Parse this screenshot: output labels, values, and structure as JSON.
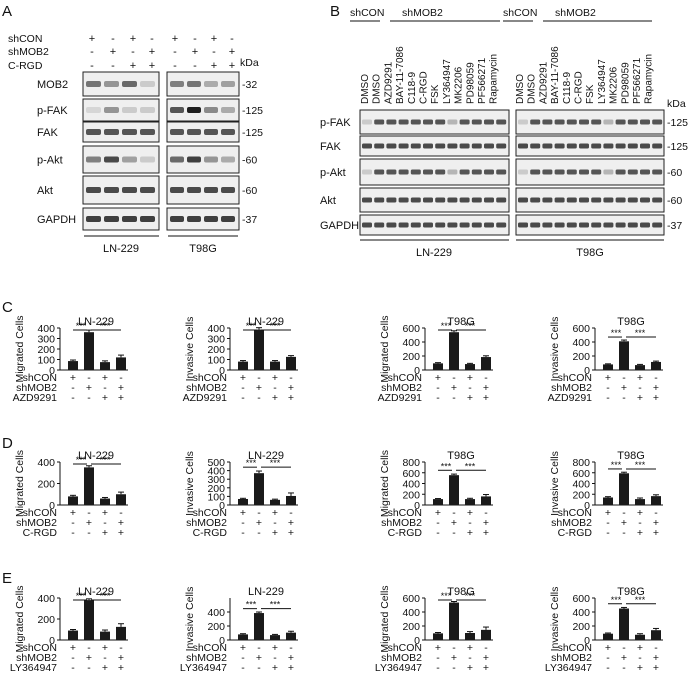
{
  "panel_letters": [
    "A",
    "B",
    "C",
    "D",
    "E"
  ],
  "panelA": {
    "row_labels": [
      "shCON",
      "shMOB2",
      "C-RGD"
    ],
    "signs": [
      [
        "+",
        "-",
        "+",
        "-",
        "+",
        "-",
        "+",
        "-"
      ],
      [
        "-",
        "+",
        "-",
        "+",
        "-",
        "+",
        "-",
        "+"
      ],
      [
        "-",
        "-",
        "+",
        "+",
        "-",
        "-",
        "+",
        "+"
      ]
    ],
    "kda_label": "kDa",
    "blots": [
      {
        "label": "MOB2",
        "kda": "-32",
        "intensity_ln": [
          0.55,
          0.4,
          0.6,
          0.15
        ],
        "intensity_t98": [
          0.5,
          0.55,
          0.3,
          0.35
        ]
      },
      {
        "label": "p-FAK",
        "kda": "-125",
        "intensity_ln": [
          0.1,
          0.4,
          0.15,
          0.15
        ],
        "intensity_t98": [
          0.7,
          0.95,
          0.45,
          0.3
        ]
      },
      {
        "label": "FAK",
        "kda": "-125",
        "intensity_ln": [
          0.7,
          0.7,
          0.7,
          0.7
        ],
        "intensity_t98": [
          0.7,
          0.7,
          0.7,
          0.7
        ]
      },
      {
        "label": "p-Akt",
        "kda": "-60",
        "intensity_ln": [
          0.5,
          0.75,
          0.35,
          0.15
        ],
        "intensity_t98": [
          0.6,
          0.8,
          0.4,
          0.3
        ]
      },
      {
        "label": "Akt",
        "kda": "-60",
        "intensity_ln": [
          0.75,
          0.75,
          0.75,
          0.75
        ],
        "intensity_t98": [
          0.75,
          0.75,
          0.75,
          0.75
        ]
      },
      {
        "label": "GAPDH",
        "kda": "-37",
        "intensity_ln": [
          0.8,
          0.8,
          0.8,
          0.8
        ],
        "intensity_t98": [
          0.8,
          0.8,
          0.8,
          0.8
        ]
      }
    ],
    "cell_lines": [
      "LN-229",
      "T98G"
    ]
  },
  "panelB": {
    "group_headers": [
      "shCON",
      "shMOB2",
      "shCON",
      "shMOB2"
    ],
    "treatments": [
      "DMSO",
      "DMSO",
      "AZD9291",
      "BAY-11-7086",
      "C118-9",
      "C-RGD",
      "FSK",
      "LY364947",
      "MK2206",
      "PD98059",
      "PF566271",
      "Rapamycin"
    ],
    "kda_label": "kDa",
    "blots": [
      {
        "label": "p-FAK",
        "kda": "-125"
      },
      {
        "label": "FAK",
        "kda": "-125"
      },
      {
        "label": "p-Akt",
        "kda": "-60"
      },
      {
        "label": "Akt",
        "kda": "-60"
      },
      {
        "label": "GAPDH",
        "kda": "-37"
      }
    ],
    "cell_lines": [
      "LN-229",
      "T98G"
    ]
  },
  "chart_data": [
    {
      "type": "bar",
      "row": "C",
      "title": "LN-229",
      "ylabel": "Migrated Cells",
      "ylim": [
        0,
        400
      ],
      "yticks": [
        0,
        100,
        200,
        300,
        400
      ],
      "values": [
        85,
        360,
        75,
        120
      ],
      "errors": [
        10,
        20,
        12,
        22
      ],
      "sig": [
        "***",
        "***"
      ],
      "treat_label": "AZD9291"
    },
    {
      "type": "bar",
      "row": "C",
      "title": "LN-229",
      "ylabel": "Invasive Cells",
      "ylim": [
        0,
        400
      ],
      "yticks": [
        0,
        100,
        200,
        300,
        400
      ],
      "values": [
        80,
        385,
        80,
        125
      ],
      "errors": [
        10,
        18,
        10,
        12
      ],
      "sig": [
        "***",
        "***"
      ],
      "treat_label": "AZD9291"
    },
    {
      "type": "bar",
      "row": "C",
      "title": "T98G",
      "ylabel": "Migrated Cells",
      "ylim": [
        0,
        600
      ],
      "yticks": [
        0,
        200,
        400,
        600
      ],
      "values": [
        95,
        540,
        85,
        185
      ],
      "errors": [
        10,
        20,
        10,
        18
      ],
      "sig": [
        "***",
        "***"
      ],
      "treat_label": "AZD9291"
    },
    {
      "type": "bar",
      "row": "C",
      "title": "T98G",
      "ylabel": "Invasive Cells",
      "ylim": [
        0,
        600
      ],
      "yticks": [
        0,
        200,
        400,
        600
      ],
      "values": [
        80,
        410,
        70,
        115
      ],
      "errors": [
        8,
        18,
        10,
        12
      ],
      "sig": [
        "***",
        "***"
      ],
      "treat_label": "AZD9291"
    },
    {
      "type": "bar",
      "row": "D",
      "title": "LN-229",
      "ylabel": "Migrated Cells",
      "ylim": [
        0,
        400
      ],
      "yticks": [
        0,
        200,
        400
      ],
      "values": [
        80,
        350,
        60,
        100
      ],
      "errors": [
        10,
        15,
        10,
        20
      ],
      "sig": [
        "***",
        "***"
      ],
      "treat_label": "C-RGD"
    },
    {
      "type": "bar",
      "row": "D",
      "title": "LN-229",
      "ylabel": "Invasive Cells",
      "ylim": [
        0,
        500
      ],
      "yticks": [
        0,
        100,
        200,
        300,
        400,
        500
      ],
      "values": [
        70,
        370,
        60,
        105
      ],
      "errors": [
        8,
        25,
        8,
        35
      ],
      "sig": [
        "***",
        "***"
      ],
      "treat_label": "C-RGD"
    },
    {
      "type": "bar",
      "row": "D",
      "title": "T98G",
      "ylabel": "Migrated Cells",
      "ylim": [
        0,
        800
      ],
      "yticks": [
        0,
        200,
        400,
        600,
        800
      ],
      "values": [
        110,
        555,
        110,
        160
      ],
      "errors": [
        10,
        20,
        15,
        35
      ],
      "sig": [
        "***",
        "***"
      ],
      "treat_label": "C-RGD"
    },
    {
      "type": "bar",
      "row": "D",
      "title": "T98G",
      "ylabel": "Invasive Cells",
      "ylim": [
        0,
        800
      ],
      "yticks": [
        0,
        200,
        400,
        600,
        800
      ],
      "values": [
        140,
        590,
        110,
        165
      ],
      "errors": [
        15,
        20,
        20,
        25
      ],
      "sig": [
        "***",
        "***"
      ],
      "treat_label": "C-RGD"
    },
    {
      "type": "bar",
      "row": "E",
      "title": "LN-229",
      "ylabel": "Migrated Cells",
      "ylim": [
        0,
        400
      ],
      "yticks": [
        0,
        200,
        400
      ],
      "values": [
        90,
        380,
        80,
        125
      ],
      "errors": [
        10,
        12,
        15,
        30
      ],
      "sig": [
        "***",
        "***"
      ],
      "treat_label": "LY364947"
    },
    {
      "type": "bar",
      "row": "E",
      "title": "LN-229",
      "ylabel": "Invasive Cells",
      "ylim": [
        0,
        600
      ],
      "yticks": [
        0,
        200,
        400
      ],
      "values": [
        80,
        385,
        70,
        105
      ],
      "errors": [
        10,
        15,
        10,
        20
      ],
      "sig": [
        "***",
        "***"
      ],
      "treat_label": "LY364947"
    },
    {
      "type": "bar",
      "row": "E",
      "title": "T98G",
      "ylabel": "Migrated Cells",
      "ylim": [
        0,
        600
      ],
      "yticks": [
        0,
        200,
        400,
        600
      ],
      "values": [
        95,
        535,
        100,
        145
      ],
      "errors": [
        12,
        15,
        20,
        40
      ],
      "sig": [
        "***",
        "***"
      ],
      "treat_label": "LY364947"
    },
    {
      "type": "bar",
      "row": "E",
      "title": "T98G",
      "ylabel": "Invasive Cells",
      "ylim": [
        0,
        600
      ],
      "yticks": [
        0,
        200,
        400,
        600
      ],
      "values": [
        90,
        450,
        75,
        140
      ],
      "errors": [
        10,
        15,
        15,
        25
      ],
      "sig": [
        "***",
        "***"
      ],
      "treat_label": "LY364947"
    }
  ],
  "bar_group_labels": {
    "shCON": "shCON",
    "shMOB2": "shMOB2",
    "signs_shCON": [
      "+",
      "-",
      "+",
      "-"
    ],
    "signs_shMOB2": [
      "-",
      "+",
      "-",
      "+"
    ],
    "signs_treat": [
      "-",
      "-",
      "+",
      "+"
    ]
  }
}
